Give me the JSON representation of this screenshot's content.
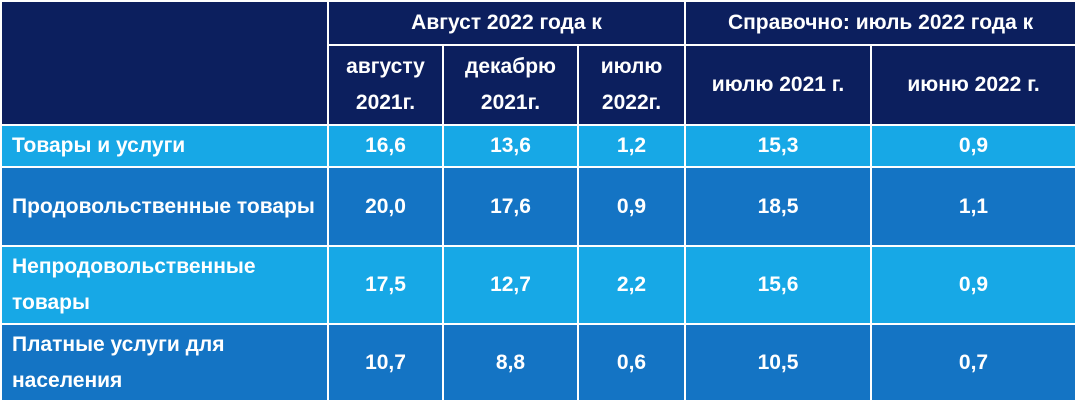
{
  "header": {
    "group1": "Август 2022 года к",
    "group2": "Справочно: июль 2022 года к",
    "columns": [
      "августу 2021г.",
      "декабрю 2021г.",
      "июлю 2022г.",
      "июлю 2021 г.",
      "июню 2022 г."
    ]
  },
  "table": {
    "rows": [
      [
        "Товары и услуги",
        "16,6",
        "13,6",
        "1,2",
        "15,3",
        "0,9"
      ],
      [
        "Продовольственные товары",
        "20,0",
        "17,6",
        "0,9",
        "18,5",
        "1,1"
      ],
      [
        "Непродовольственные товары",
        "17,5",
        "12,7",
        "2,2",
        "15,6",
        "0,9"
      ],
      [
        "Платные услуги для населения",
        "10,7",
        "8,8",
        "0,6",
        "10,5",
        "0,7"
      ]
    ]
  }
}
